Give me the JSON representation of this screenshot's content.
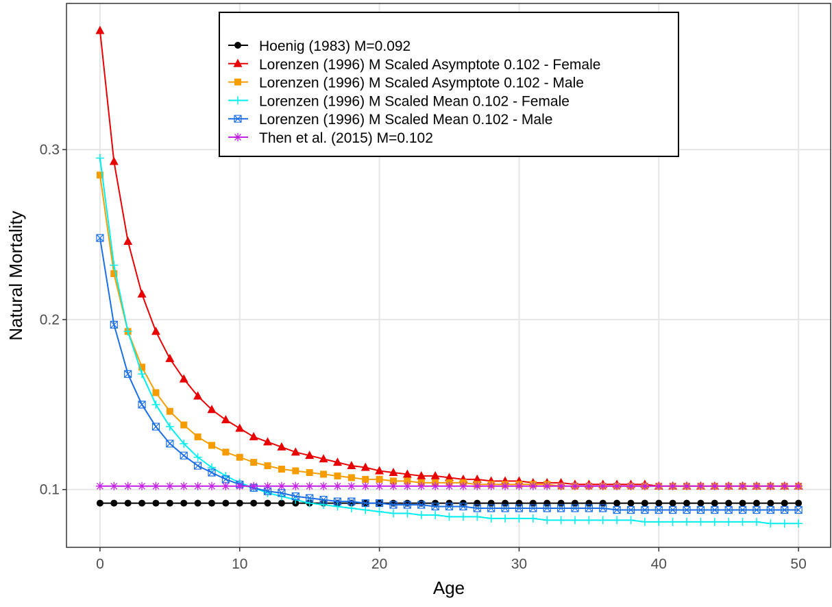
{
  "chart_data": {
    "type": "line",
    "x_label": "Age",
    "y_label": "Natural Mortality",
    "x": [
      0,
      1,
      2,
      3,
      4,
      5,
      6,
      7,
      8,
      9,
      10,
      11,
      12,
      13,
      14,
      15,
      16,
      17,
      18,
      19,
      20,
      21,
      22,
      23,
      24,
      25,
      26,
      27,
      28,
      29,
      30,
      31,
      32,
      33,
      34,
      35,
      36,
      37,
      38,
      39,
      40,
      41,
      42,
      43,
      44,
      45,
      46,
      47,
      48,
      49,
      50
    ],
    "xlim": [
      -2.4,
      52.3
    ],
    "xticks": [
      0,
      10,
      20,
      30,
      40,
      50
    ],
    "ylim": [
      0.066,
      0.386
    ],
    "yticks": [
      0.1,
      0.2,
      0.3
    ],
    "grid": true,
    "legend": "top",
    "series": [
      {
        "name": "Hoenig (1983) M=0.092",
        "color": "#000000",
        "marker": "circle",
        "values": [
          0.092,
          0.092,
          0.092,
          0.092,
          0.092,
          0.092,
          0.092,
          0.092,
          0.092,
          0.092,
          0.092,
          0.092,
          0.092,
          0.092,
          0.092,
          0.092,
          0.092,
          0.092,
          0.092,
          0.092,
          0.092,
          0.092,
          0.092,
          0.092,
          0.092,
          0.092,
          0.092,
          0.092,
          0.092,
          0.092,
          0.092,
          0.092,
          0.092,
          0.092,
          0.092,
          0.092,
          0.092,
          0.092,
          0.092,
          0.092,
          0.092,
          0.092,
          0.092,
          0.092,
          0.092,
          0.092,
          0.092,
          0.092,
          0.092,
          0.092,
          0.092
        ]
      },
      {
        "name": "Lorenzen (1996) M Scaled Asymptote 0.102 - Female",
        "color": "#e80000",
        "marker": "triangle",
        "values": [
          0.37,
          0.293,
          0.246,
          0.215,
          0.193,
          0.177,
          0.165,
          0.155,
          0.147,
          0.141,
          0.136,
          0.131,
          0.128,
          0.125,
          0.122,
          0.12,
          0.118,
          0.116,
          0.114,
          0.113,
          0.111,
          0.11,
          0.109,
          0.108,
          0.108,
          0.107,
          0.106,
          0.106,
          0.105,
          0.105,
          0.105,
          0.104,
          0.104,
          0.104,
          0.103,
          0.103,
          0.103,
          0.103,
          0.103,
          0.103,
          0.102,
          0.102,
          0.102,
          0.102,
          0.102,
          0.102,
          0.102,
          0.102,
          0.102,
          0.102,
          0.102
        ]
      },
      {
        "name": "Lorenzen (1996) M Scaled Asymptote 0.102 - Male",
        "color": "#f59d00",
        "marker": "square",
        "values": [
          0.285,
          0.227,
          0.193,
          0.172,
          0.157,
          0.146,
          0.138,
          0.131,
          0.126,
          0.122,
          0.119,
          0.116,
          0.114,
          0.112,
          0.111,
          0.11,
          0.109,
          0.108,
          0.107,
          0.106,
          0.106,
          0.105,
          0.105,
          0.104,
          0.104,
          0.104,
          0.104,
          0.103,
          0.103,
          0.103,
          0.103,
          0.103,
          0.103,
          0.102,
          0.102,
          0.102,
          0.102,
          0.102,
          0.102,
          0.102,
          0.102,
          0.102,
          0.102,
          0.102,
          0.102,
          0.102,
          0.102,
          0.102,
          0.102,
          0.102,
          0.102
        ]
      },
      {
        "name": "Lorenzen (1996) M Scaled Mean 0.102 - Female",
        "color": "#00eeee",
        "marker": "plus",
        "values": [
          0.295,
          0.232,
          0.193,
          0.168,
          0.15,
          0.137,
          0.127,
          0.119,
          0.113,
          0.108,
          0.104,
          0.101,
          0.098,
          0.096,
          0.094,
          0.092,
          0.091,
          0.09,
          0.089,
          0.088,
          0.087,
          0.086,
          0.086,
          0.085,
          0.085,
          0.084,
          0.084,
          0.084,
          0.083,
          0.083,
          0.083,
          0.083,
          0.082,
          0.082,
          0.082,
          0.082,
          0.082,
          0.082,
          0.082,
          0.081,
          0.081,
          0.081,
          0.081,
          0.081,
          0.081,
          0.081,
          0.081,
          0.081,
          0.08,
          0.08,
          0.08
        ]
      },
      {
        "name": "Lorenzen (1996) M Scaled Mean 0.102 - Male",
        "color": "#1a6ee8",
        "marker": "boxx",
        "values": [
          0.248,
          0.197,
          0.168,
          0.15,
          0.137,
          0.127,
          0.12,
          0.114,
          0.11,
          0.106,
          0.103,
          0.101,
          0.099,
          0.098,
          0.096,
          0.095,
          0.094,
          0.093,
          0.093,
          0.092,
          0.092,
          0.091,
          0.091,
          0.091,
          0.09,
          0.09,
          0.09,
          0.089,
          0.089,
          0.089,
          0.089,
          0.089,
          0.089,
          0.089,
          0.089,
          0.089,
          0.089,
          0.088,
          0.088,
          0.088,
          0.088,
          0.088,
          0.088,
          0.088,
          0.088,
          0.088,
          0.088,
          0.088,
          0.088,
          0.088,
          0.088
        ]
      },
      {
        "name": "Then et al. (2015) M=0.102",
        "color": "#c41ee8",
        "marker": "asterisk",
        "values": [
          0.102,
          0.102,
          0.102,
          0.102,
          0.102,
          0.102,
          0.102,
          0.102,
          0.102,
          0.102,
          0.102,
          0.102,
          0.102,
          0.102,
          0.102,
          0.102,
          0.102,
          0.102,
          0.102,
          0.102,
          0.102,
          0.102,
          0.102,
          0.102,
          0.102,
          0.102,
          0.102,
          0.102,
          0.102,
          0.102,
          0.102,
          0.102,
          0.102,
          0.102,
          0.102,
          0.102,
          0.102,
          0.102,
          0.102,
          0.102,
          0.102,
          0.102,
          0.102,
          0.102,
          0.102,
          0.102,
          0.102,
          0.102,
          0.102,
          0.102,
          0.102
        ]
      }
    ]
  }
}
